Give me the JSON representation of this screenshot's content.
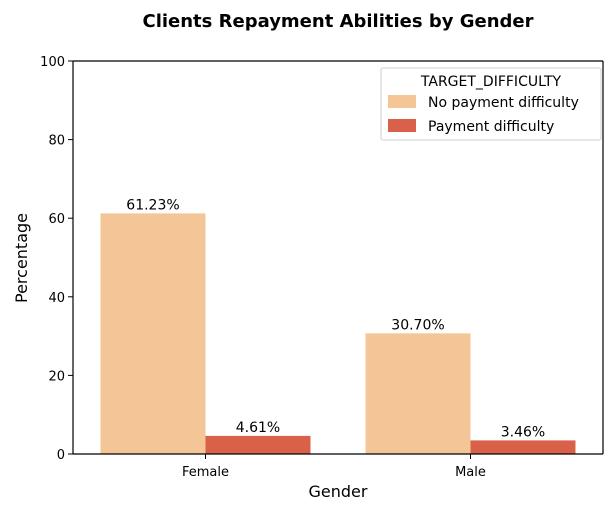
{
  "chart_data": {
    "type": "bar",
    "title": "Clients Repayment Abilities by Gender",
    "xlabel": "Gender",
    "ylabel": "Percentage",
    "categories": [
      "Female",
      "Male"
    ],
    "ylim": [
      0,
      100
    ],
    "yticks": [
      0,
      20,
      40,
      60,
      80,
      100
    ],
    "grid": false,
    "legend": {
      "title": "TARGET_DIFFICULTY",
      "placement": "top-right"
    },
    "series": [
      {
        "name": "No payment difficulty",
        "values": [
          61.23,
          30.7
        ],
        "labels": [
          "61.23%",
          "30.70%"
        ],
        "color": "#f4c596"
      },
      {
        "name": "Payment difficulty",
        "values": [
          4.61,
          3.46
        ],
        "labels": [
          "4.61%",
          "3.46%"
        ],
        "color": "#d9614a"
      }
    ]
  }
}
